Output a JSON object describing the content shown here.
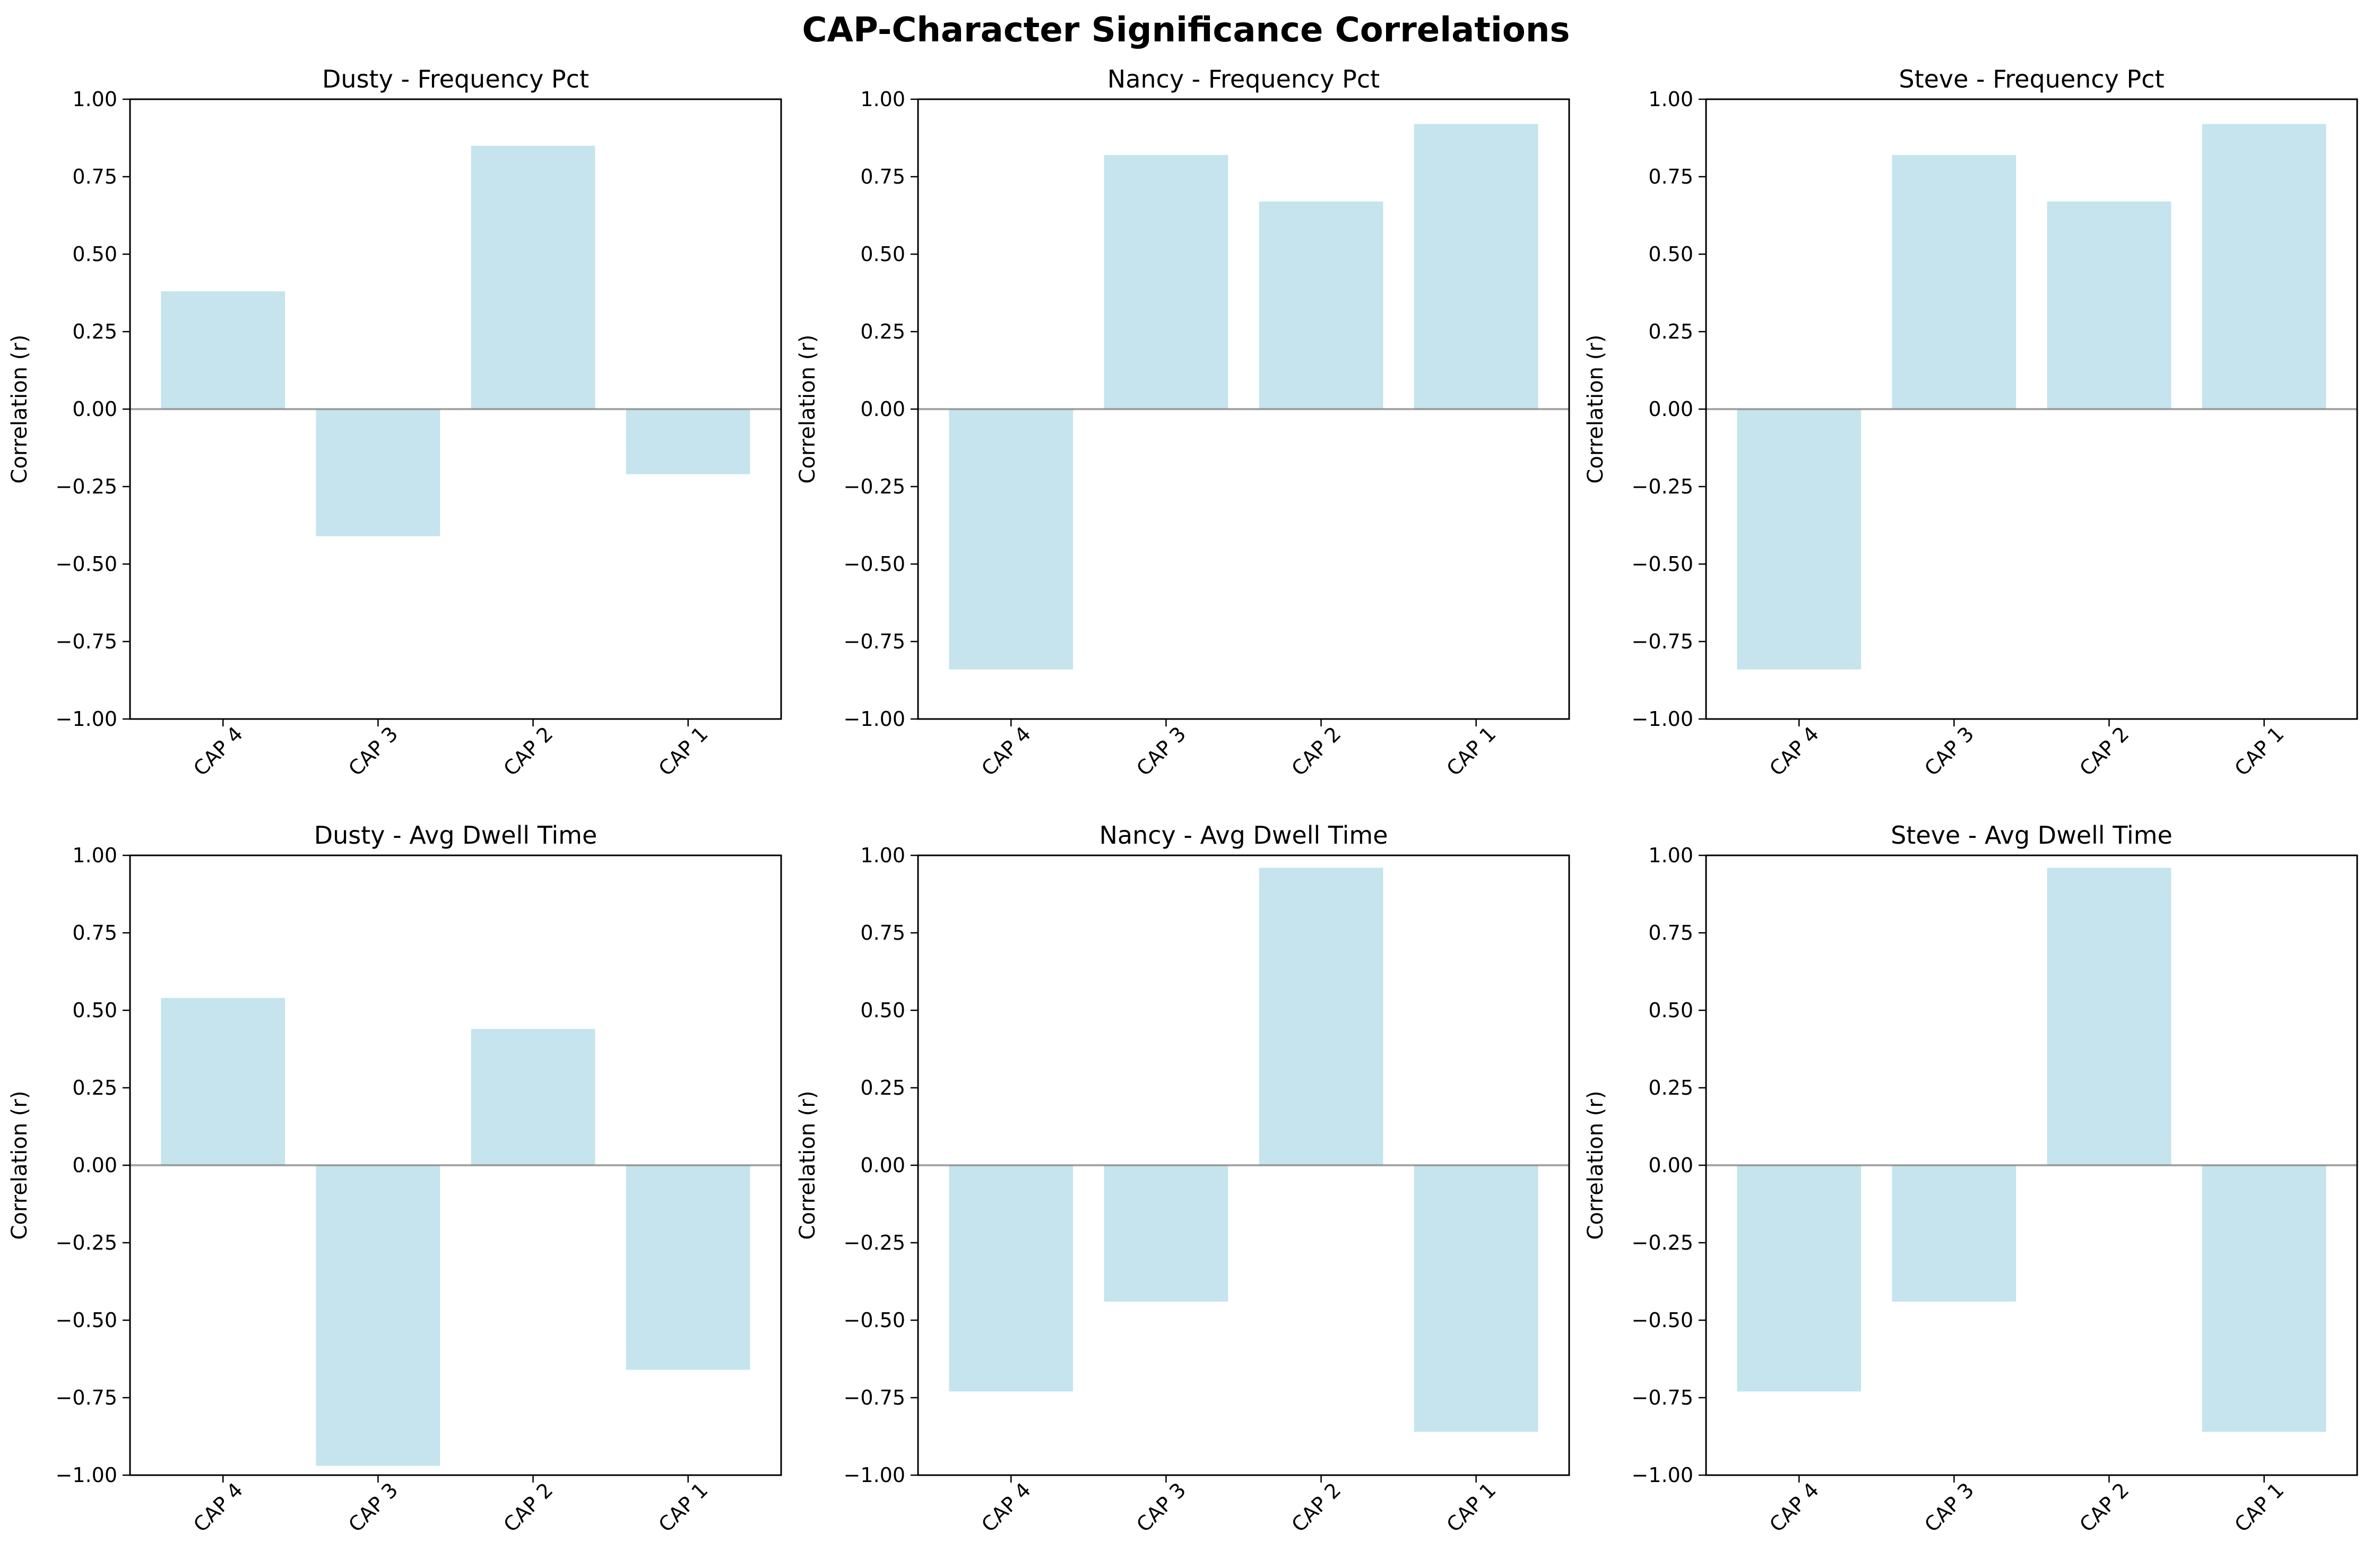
{
  "figure": {
    "title": "CAP-Character Significance Correlations"
  },
  "style": {
    "bar_color": "#add8e6",
    "bar_opacity": 0.7,
    "zero_line_color": "#808080",
    "axis_color": "#000000",
    "background": "#ffffff"
  },
  "chart_data": [
    {
      "type": "bar",
      "title": "Dusty - Frequency Pct",
      "categories": [
        "CAP 4",
        "CAP 3",
        "CAP 2",
        "CAP 1"
      ],
      "values": [
        0.38,
        -0.41,
        0.85,
        -0.21
      ],
      "ylabel": "Correlation (r)",
      "xlabel": "",
      "ylim": [
        -1.0,
        1.0
      ],
      "yticks": [
        "1.00",
        "0.75",
        "0.50",
        "0.25",
        "0.00",
        "−0.25",
        "−0.50",
        "−0.75",
        "−1.00"
      ],
      "grid": false
    },
    {
      "type": "bar",
      "title": "Nancy - Frequency Pct",
      "categories": [
        "CAP 4",
        "CAP 3",
        "CAP 2",
        "CAP 1"
      ],
      "values": [
        -0.84,
        0.82,
        0.67,
        0.92
      ],
      "ylabel": "Correlation (r)",
      "xlabel": "",
      "ylim": [
        -1.0,
        1.0
      ],
      "yticks": [
        "1.00",
        "0.75",
        "0.50",
        "0.25",
        "0.00",
        "−0.25",
        "−0.50",
        "−0.75",
        "−1.00"
      ],
      "grid": false
    },
    {
      "type": "bar",
      "title": "Steve - Frequency Pct",
      "categories": [
        "CAP 4",
        "CAP 3",
        "CAP 2",
        "CAP 1"
      ],
      "values": [
        -0.84,
        0.82,
        0.67,
        0.92
      ],
      "ylabel": "Correlation (r)",
      "xlabel": "",
      "ylim": [
        -1.0,
        1.0
      ],
      "yticks": [
        "1.00",
        "0.75",
        "0.50",
        "0.25",
        "0.00",
        "−0.25",
        "−0.50",
        "−0.75",
        "−1.00"
      ],
      "grid": false
    },
    {
      "type": "bar",
      "title": "Dusty - Avg Dwell Time",
      "categories": [
        "CAP 4",
        "CAP 3",
        "CAP 2",
        "CAP 1"
      ],
      "values": [
        0.54,
        -0.97,
        0.44,
        -0.66
      ],
      "ylabel": "Correlation (r)",
      "xlabel": "",
      "ylim": [
        -1.0,
        1.0
      ],
      "yticks": [
        "1.00",
        "0.75",
        "0.50",
        "0.25",
        "0.00",
        "−0.25",
        "−0.50",
        "−0.75",
        "−1.00"
      ],
      "grid": false
    },
    {
      "type": "bar",
      "title": "Nancy - Avg Dwell Time",
      "categories": [
        "CAP 4",
        "CAP 3",
        "CAP 2",
        "CAP 1"
      ],
      "values": [
        -0.73,
        -0.44,
        0.96,
        -0.86
      ],
      "ylabel": "Correlation (r)",
      "xlabel": "",
      "ylim": [
        -1.0,
        1.0
      ],
      "yticks": [
        "1.00",
        "0.75",
        "0.50",
        "0.25",
        "0.00",
        "−0.25",
        "−0.50",
        "−0.75",
        "−1.00"
      ],
      "grid": false
    },
    {
      "type": "bar",
      "title": "Steve - Avg Dwell Time",
      "categories": [
        "CAP 4",
        "CAP 3",
        "CAP 2",
        "CAP 1"
      ],
      "values": [
        -0.73,
        -0.44,
        0.96,
        -0.86
      ],
      "ylabel": "Correlation (r)",
      "xlabel": "",
      "ylim": [
        -1.0,
        1.0
      ],
      "yticks": [
        "1.00",
        "0.75",
        "0.50",
        "0.25",
        "0.00",
        "−0.25",
        "−0.50",
        "−0.75",
        "−1.00"
      ],
      "grid": false
    }
  ]
}
